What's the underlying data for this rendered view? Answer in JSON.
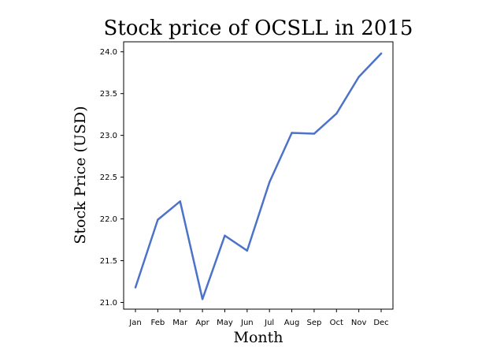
{
  "chart_data": {
    "type": "line",
    "title": "Stock price of OCSLL in 2015",
    "xlabel": "Month",
    "ylabel": "Stock Price (USD)",
    "categories": [
      "Jan",
      "Feb",
      "Mar",
      "Apr",
      "May",
      "Jun",
      "Jul",
      "Aug",
      "Sep",
      "Oct",
      "Nov",
      "Dec"
    ],
    "series": [
      {
        "values": [
          21.18,
          21.99,
          22.21,
          21.04,
          21.8,
          21.62,
          22.44,
          23.03,
          23.02,
          23.26,
          23.7,
          23.98
        ],
        "color": "#4c72c9"
      }
    ],
    "ylim": [
      20.92,
      24.12
    ],
    "yticks": [
      "21.0",
      "21.5",
      "22.0",
      "22.5",
      "23.0",
      "23.5",
      "24.0"
    ],
    "grid": false,
    "legend": "none"
  }
}
